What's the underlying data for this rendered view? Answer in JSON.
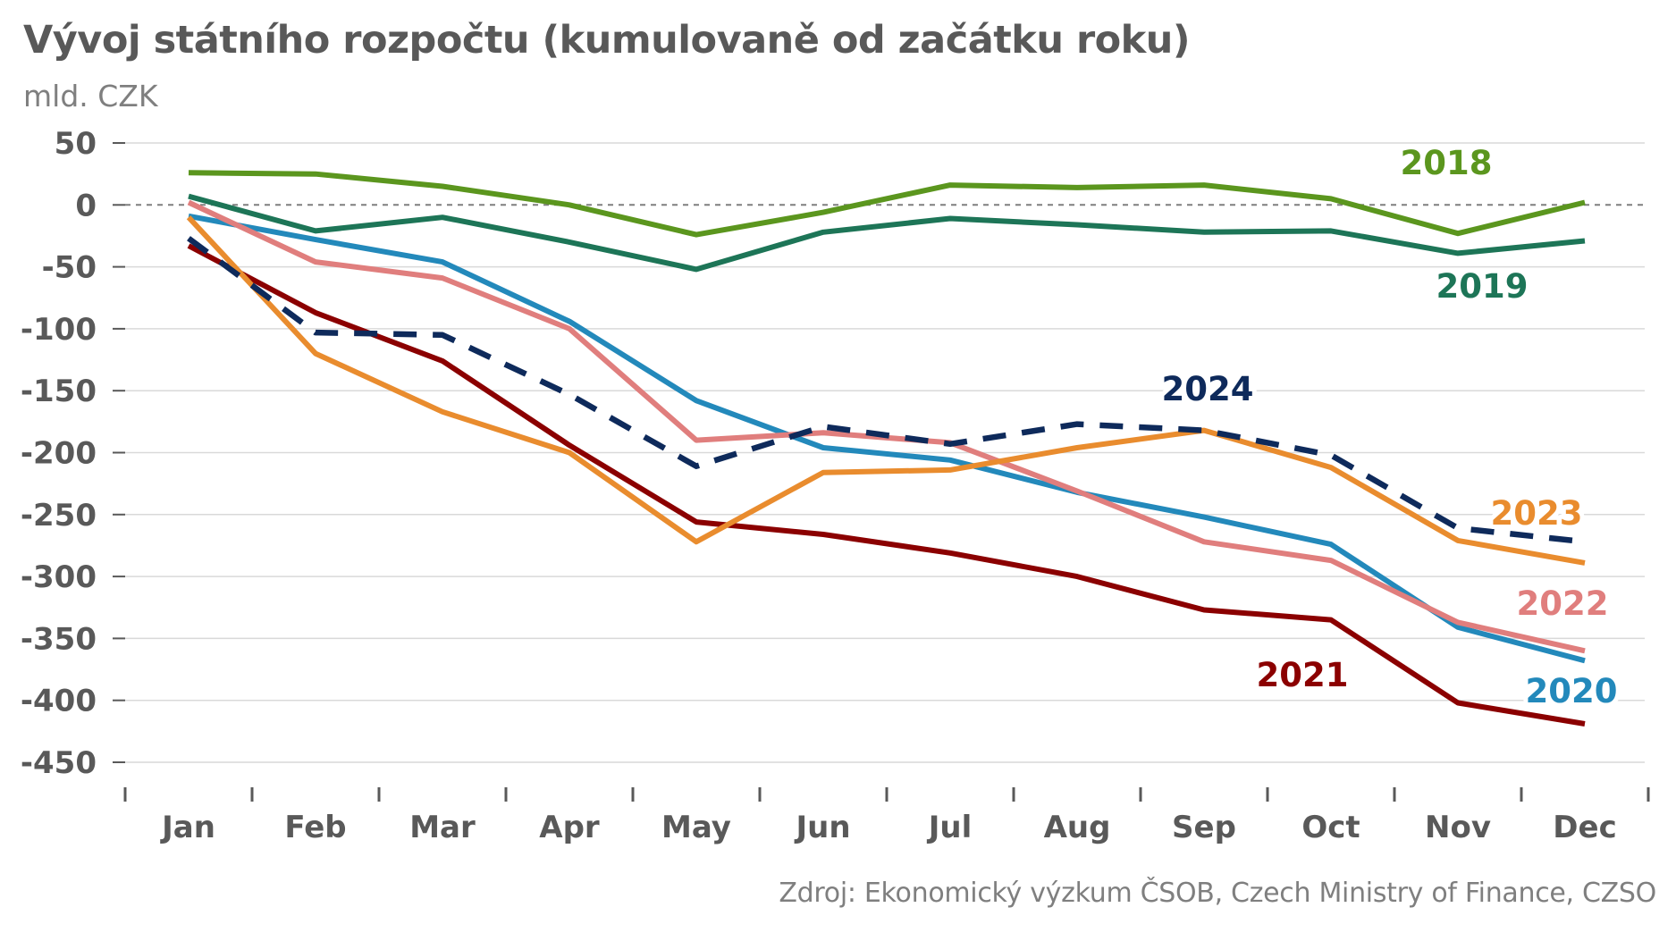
{
  "title": "Vývoj státního rozpočtu (kumulovaně od začátku roku)",
  "unit": "mld. CZK",
  "source": "Zdroj: Ekonomický výzkum ČSOB, Czech Ministry of Finance, CZSO",
  "chart_data": {
    "type": "line",
    "categories": [
      "Jan",
      "Feb",
      "Mar",
      "Apr",
      "May",
      "Jun",
      "Jul",
      "Aug",
      "Sep",
      "Oct",
      "Nov",
      "Dec"
    ],
    "ylim": [
      -450,
      50
    ],
    "yticks": [
      50,
      0,
      -50,
      -100,
      -150,
      -200,
      -250,
      -300,
      -350,
      -400,
      -450
    ],
    "ytick_labels": [
      "50",
      "0",
      "-50",
      "-100",
      "-150",
      "-200",
      "-250",
      "-300",
      "-350",
      "-400",
      "-450"
    ],
    "grid": true,
    "zero_line": "dashed",
    "series": [
      {
        "name": "2018",
        "color": "#5b961e",
        "dashed": false,
        "values": [
          26,
          25,
          15,
          0,
          -24,
          -6,
          16,
          14,
          16,
          5,
          -23,
          2
        ]
      },
      {
        "name": "2019",
        "color": "#1d7557",
        "dashed": false,
        "values": [
          7,
          -21,
          -10,
          -30,
          -52,
          -22,
          -11,
          -16,
          -22,
          -21,
          -39,
          -29
        ]
      },
      {
        "name": "2020",
        "color": "#2389bb",
        "dashed": false,
        "values": [
          -9,
          -28,
          -46,
          -94,
          -158,
          -196,
          -206,
          -232,
          -252,
          -274,
          -341,
          -368
        ]
      },
      {
        "name": "2021",
        "color": "#8b0000",
        "dashed": false,
        "values": [
          -33,
          -87,
          -126,
          -194,
          -256,
          -266,
          -281,
          -300,
          -327,
          -335,
          -402,
          -419
        ]
      },
      {
        "name": "2022",
        "color": "#e07e7d",
        "dashed": false,
        "values": [
          2,
          -46,
          -59,
          -100,
          -190,
          -184,
          -192,
          -231,
          -272,
          -287,
          -337,
          -360
        ]
      },
      {
        "name": "2023",
        "color": "#e98c2e",
        "dashed": false,
        "values": [
          -10,
          -120,
          -167,
          -200,
          -272,
          -216,
          -214,
          -196,
          -182,
          -212,
          -271,
          -289
        ]
      },
      {
        "name": "2024",
        "color": "#0e2a5b",
        "dashed": true,
        "values": [
          -27,
          -103,
          -105,
          -153,
          -211,
          -179,
          -193,
          -177,
          -182,
          -202,
          -261,
          -272
        ]
      }
    ],
    "labels": [
      {
        "text": "2018",
        "color": "#5b961e"
      },
      {
        "text": "2019",
        "color": "#1d7557"
      },
      {
        "text": "2020",
        "color": "#2389bb"
      },
      {
        "text": "2021",
        "color": "#8b0000"
      },
      {
        "text": "2022",
        "color": "#e07e7d"
      },
      {
        "text": "2023",
        "color": "#e98c2e"
      },
      {
        "text": "2024",
        "color": "#0e2a5b"
      }
    ]
  }
}
